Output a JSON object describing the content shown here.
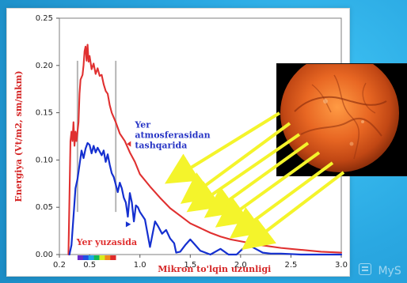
{
  "chart_data": {
    "type": "line",
    "title": "",
    "xlabel": "Mikron to'lqin uzunligi",
    "ylabel": "Energiya (Vt/m2, sm/mkm)",
    "xlim": [
      0.2,
      3.0
    ],
    "ylim": [
      0.0,
      0.25
    ],
    "x_ticks": [
      "0.2",
      "0.5",
      "1.0",
      "1.5",
      "2.0",
      "2.5",
      "3.0"
    ],
    "y_ticks": [
      "0.00",
      "0.05",
      "0.10",
      "0.15",
      "0.20",
      "0.25"
    ],
    "grid": false,
    "series": [
      {
        "name": "Yer atmosferasidan tashqarida",
        "label": "Yer atmosferasidan tashqarida",
        "color": "#e03030",
        "points": [
          [
            0.29,
            0.0
          ],
          [
            0.3,
            0.06
          ],
          [
            0.31,
            0.12
          ],
          [
            0.32,
            0.13
          ],
          [
            0.33,
            0.12
          ],
          [
            0.34,
            0.14
          ],
          [
            0.35,
            0.115
          ],
          [
            0.36,
            0.13
          ],
          [
            0.37,
            0.12
          ],
          [
            0.39,
            0.14
          ],
          [
            0.4,
            0.17
          ],
          [
            0.41,
            0.185
          ],
          [
            0.43,
            0.19
          ],
          [
            0.44,
            0.2
          ],
          [
            0.45,
            0.215
          ],
          [
            0.46,
            0.22
          ],
          [
            0.47,
            0.205
          ],
          [
            0.48,
            0.222
          ],
          [
            0.49,
            0.204
          ],
          [
            0.5,
            0.21
          ],
          [
            0.52,
            0.196
          ],
          [
            0.54,
            0.202
          ],
          [
            0.56,
            0.191
          ],
          [
            0.58,
            0.197
          ],
          [
            0.6,
            0.189
          ],
          [
            0.62,
            0.19
          ],
          [
            0.64,
            0.18
          ],
          [
            0.66,
            0.173
          ],
          [
            0.68,
            0.17
          ],
          [
            0.7,
            0.158
          ],
          [
            0.72,
            0.15
          ],
          [
            0.76,
            0.14
          ],
          [
            0.8,
            0.128
          ],
          [
            0.85,
            0.12
          ],
          [
            0.9,
            0.108
          ],
          [
            0.95,
            0.098
          ],
          [
            1.0,
            0.085
          ],
          [
            1.1,
            0.072
          ],
          [
            1.2,
            0.06
          ],
          [
            1.3,
            0.049
          ],
          [
            1.4,
            0.041
          ],
          [
            1.5,
            0.033
          ],
          [
            1.6,
            0.028
          ],
          [
            1.7,
            0.023
          ],
          [
            1.8,
            0.019
          ],
          [
            1.9,
            0.016
          ],
          [
            2.0,
            0.014
          ],
          [
            2.2,
            0.01
          ],
          [
            2.4,
            0.007
          ],
          [
            2.6,
            0.005
          ],
          [
            2.8,
            0.003
          ],
          [
            3.0,
            0.002
          ]
        ]
      },
      {
        "name": "Yer yuzasida",
        "label": "Yer yuzasida",
        "color": "#1530d0",
        "points": [
          [
            0.3,
            0.0
          ],
          [
            0.32,
            0.01
          ],
          [
            0.34,
            0.04
          ],
          [
            0.36,
            0.07
          ],
          [
            0.38,
            0.08
          ],
          [
            0.4,
            0.095
          ],
          [
            0.42,
            0.11
          ],
          [
            0.44,
            0.102
          ],
          [
            0.46,
            0.112
          ],
          [
            0.48,
            0.118
          ],
          [
            0.5,
            0.116
          ],
          [
            0.52,
            0.107
          ],
          [
            0.54,
            0.115
          ],
          [
            0.56,
            0.108
          ],
          [
            0.58,
            0.113
          ],
          [
            0.6,
            0.109
          ],
          [
            0.62,
            0.105
          ],
          [
            0.64,
            0.11
          ],
          [
            0.66,
            0.098
          ],
          [
            0.68,
            0.106
          ],
          [
            0.7,
            0.095
          ],
          [
            0.72,
            0.086
          ],
          [
            0.74,
            0.082
          ],
          [
            0.76,
            0.074
          ],
          [
            0.78,
            0.066
          ],
          [
            0.8,
            0.076
          ],
          [
            0.82,
            0.07
          ],
          [
            0.84,
            0.06
          ],
          [
            0.86,
            0.055
          ],
          [
            0.88,
            0.04
          ],
          [
            0.9,
            0.065
          ],
          [
            0.92,
            0.055
          ],
          [
            0.94,
            0.035
          ],
          [
            0.96,
            0.052
          ],
          [
            0.98,
            0.05
          ],
          [
            1.0,
            0.045
          ],
          [
            1.05,
            0.037
          ],
          [
            1.1,
            0.008
          ],
          [
            1.15,
            0.035
          ],
          [
            1.18,
            0.03
          ],
          [
            1.22,
            0.022
          ],
          [
            1.26,
            0.026
          ],
          [
            1.3,
            0.017
          ],
          [
            1.34,
            0.012
          ],
          [
            1.36,
            0.002
          ],
          [
            1.4,
            0.003
          ],
          [
            1.45,
            0.01
          ],
          [
            1.5,
            0.016
          ],
          [
            1.55,
            0.01
          ],
          [
            1.6,
            0.004
          ],
          [
            1.7,
            0.0
          ],
          [
            1.8,
            0.006
          ],
          [
            1.88,
            0.0
          ],
          [
            1.96,
            0.0
          ],
          [
            2.02,
            0.006
          ],
          [
            2.08,
            0.01
          ],
          [
            2.15,
            0.006
          ],
          [
            2.22,
            0.002
          ],
          [
            2.3,
            0.001
          ],
          [
            2.4,
            0.001
          ],
          [
            2.6,
            0.0
          ],
          [
            2.8,
            0.0
          ],
          [
            3.0,
            0.0
          ]
        ]
      }
    ],
    "visible_band": [
      0.38,
      0.76
    ]
  },
  "chart_labels": {
    "upper_series_label": "Yer atmosferasidan tashqarida",
    "lower_series_label": "Yer yuzasida"
  },
  "colors": {
    "background_blue": "#2aa8e2",
    "axis": "#666666",
    "red_curve": "#e03030",
    "blue_curve": "#1530d0",
    "arrow_yellow": "#f4f42b"
  },
  "decorations": {
    "sun_image": "sun",
    "rays": "yellow-arrows",
    "watermark": "MyS"
  }
}
